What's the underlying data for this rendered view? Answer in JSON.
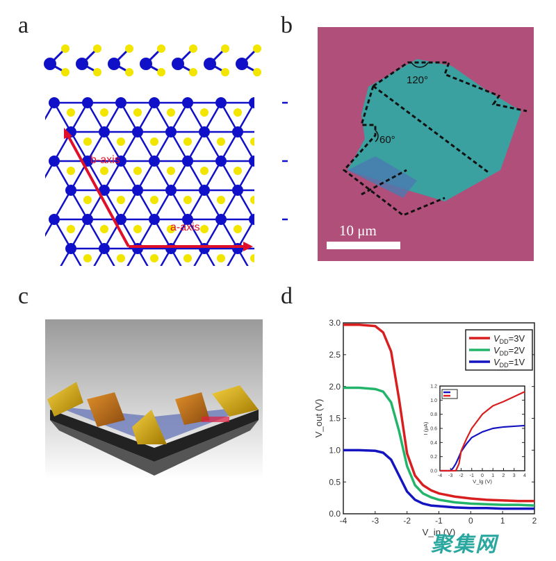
{
  "panels": {
    "a": {
      "label": "a",
      "b_axis": "b-axis",
      "a_axis": "a-axis",
      "colors": {
        "metal": "#1010c8",
        "chalcogen": "#f2e600",
        "arrow": "#e0102a"
      }
    },
    "b": {
      "label": "b",
      "angle1": "120°",
      "angle2": "60°",
      "scale_bar": "10 μm",
      "colors": {
        "substrate": "#b0507a",
        "flake": "#3aa0a0"
      }
    },
    "c": {
      "label": "c"
    },
    "d": {
      "label": "d"
    }
  },
  "watermark": "聚集网",
  "chart_data": [
    {
      "type": "line",
      "xlabel": "V_in (V)",
      "ylabel": "V_out (V)",
      "xlim": [
        -4,
        2
      ],
      "ylim": [
        0,
        3
      ],
      "xticks": [
        "-4",
        "-3",
        "-2",
        "-1",
        "0",
        "1",
        "2"
      ],
      "yticks": [
        "0.0",
        "0.5",
        "1.0",
        "1.5",
        "2.0",
        "2.5",
        "3.0"
      ],
      "legend": "top-right",
      "x": [
        -4,
        -3.5,
        -3,
        -2.75,
        -2.5,
        -2.25,
        -2,
        -1.75,
        -1.5,
        -1.25,
        -1,
        -0.5,
        0,
        0.5,
        1,
        1.5,
        2
      ],
      "series": [
        {
          "name": "VDD=3V",
          "name_main": "V",
          "name_sub": "DD",
          "name_rest": "=3V",
          "color": "#d81e1e",
          "values": [
            2.97,
            2.97,
            2.95,
            2.85,
            2.55,
            1.8,
            0.95,
            0.6,
            0.45,
            0.37,
            0.32,
            0.27,
            0.24,
            0.22,
            0.21,
            0.2,
            0.2
          ]
        },
        {
          "name": "VDD=2V",
          "name_main": "V",
          "name_sub": "DD",
          "name_rest": "=2V",
          "color": "#22b56a",
          "values": [
            1.98,
            1.98,
            1.96,
            1.92,
            1.75,
            1.3,
            0.75,
            0.45,
            0.32,
            0.26,
            0.22,
            0.18,
            0.16,
            0.15,
            0.14,
            0.14,
            0.13
          ]
        },
        {
          "name": "VDD=1V",
          "name_main": "V",
          "name_sub": "DD",
          "name_rest": "=1V",
          "color": "#1414c0",
          "values": [
            1.0,
            1.0,
            0.99,
            0.96,
            0.85,
            0.6,
            0.35,
            0.22,
            0.16,
            0.13,
            0.12,
            0.1,
            0.09,
            0.09,
            0.08,
            0.08,
            0.08
          ]
        }
      ]
    },
    {
      "type": "line",
      "xlabel": "V_lg (V)",
      "ylabel": "I (μA)",
      "xlim": [
        -4,
        4
      ],
      "ylim": [
        0,
        1.2
      ],
      "xticks": [
        "-4",
        "-3",
        "-2",
        "-1",
        "0",
        "1",
        "2",
        "3",
        "4"
      ],
      "yticks": [
        "0.0",
        "0.2",
        "0.4",
        "0.6",
        "0.8",
        "1.0",
        "1.2"
      ],
      "legend": "top-left",
      "x": [
        -4,
        -3,
        -2.75,
        -2.5,
        -2.2,
        -2,
        -1.5,
        -1,
        0,
        1,
        2,
        3,
        4
      ],
      "series": [
        {
          "color": "#1414c0",
          "values": [
            0,
            0,
            0.04,
            0.1,
            0.2,
            0.27,
            0.38,
            0.47,
            0.55,
            0.6,
            0.62,
            0.63,
            0.64
          ]
        },
        {
          "color": "#d81e1e",
          "values": [
            0,
            0,
            0,
            0,
            0.1,
            0.28,
            0.45,
            0.6,
            0.8,
            0.92,
            0.98,
            1.05,
            1.12
          ]
        }
      ]
    }
  ]
}
